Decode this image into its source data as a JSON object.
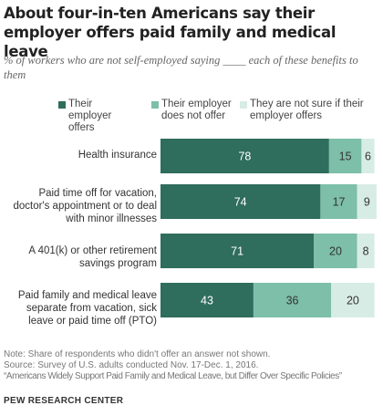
{
  "title": "About four-in-ten  Americans say their employer offers paid family and medical leave",
  "subtitle": "% of workers who are not self-employed saying ____ each of these benefits to them",
  "colors": {
    "offers": "#2f6d5c",
    "not_offer": "#7dbfa9",
    "not_sure": "#d8ece6"
  },
  "legend": [
    {
      "key": "offers",
      "label": "Their employer offers"
    },
    {
      "key": "not_offer",
      "label": "Their employer does not offer"
    },
    {
      "key": "not_sure",
      "label": "They are not sure if their employer offers"
    }
  ],
  "chart_data": {
    "type": "bar",
    "orientation": "horizontal",
    "stacked": true,
    "xlim": [
      0,
      100
    ],
    "categories": [
      "Health insurance",
      "Paid time off for vacation, doctor's appointment or to deal with minor illnesses",
      "A 401(k) or other retirement savings program",
      "Paid family and medical leave separate from vacation, sick leave or paid time off (PTO)"
    ],
    "series": [
      {
        "name": "Their employer offers",
        "key": "offers",
        "values": [
          78,
          74,
          71,
          43
        ]
      },
      {
        "name": "Their employer does not offer",
        "key": "not_offer",
        "values": [
          15,
          17,
          20,
          36
        ]
      },
      {
        "name": "They are not sure if their employer offers",
        "key": "not_sure",
        "values": [
          6,
          9,
          8,
          20
        ]
      }
    ]
  },
  "footer": {
    "note": "Note: Share of respondents who didn't offer an answer not shown.",
    "source": "Source: Survey of U.S. adults conducted Nov. 17-Dec. 1, 2016.",
    "report": "“Americans Widely Support Paid Family and Medical Leave, but Differ Over Specific Policies”",
    "brand": "PEW RESEARCH CENTER"
  }
}
